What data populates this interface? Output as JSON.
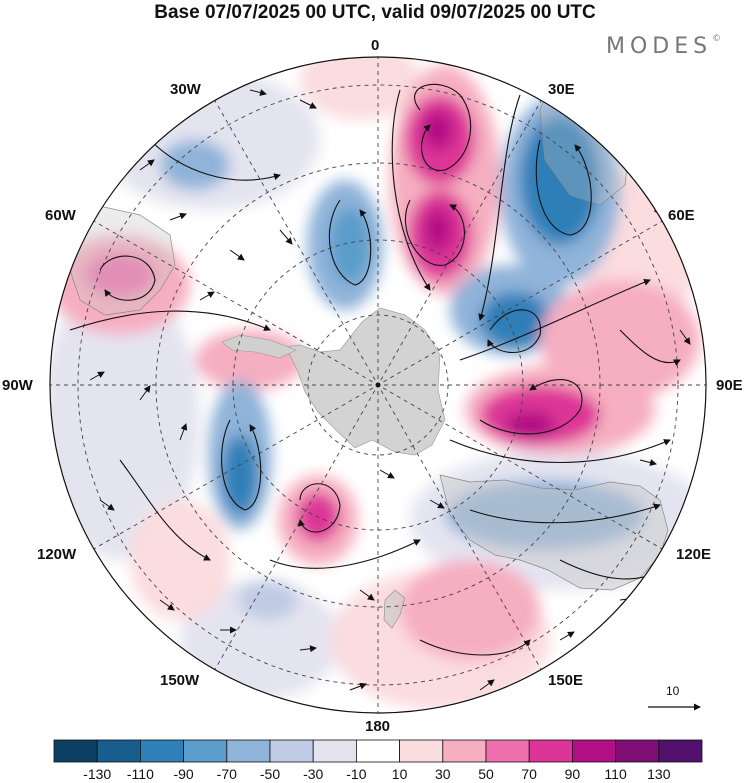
{
  "title": "Base 07/07/2025 00 UTC, valid 09/07/2025 00 UTC",
  "brand": {
    "name": "MODES",
    "mark": "©"
  },
  "map": {
    "projection": "south-polar-stereographic",
    "longitude_labels": {
      "top": "0",
      "top_right": "30E",
      "right_upper": "60E",
      "right": "90E",
      "right_lower": "120E",
      "bottom_right": "150E",
      "bottom": "180",
      "bottom_left": "150W",
      "left_lower": "120W",
      "left": "90W",
      "left_upper": "60W",
      "top_left": "30W"
    },
    "vector_reference": "10"
  },
  "colorbar": {
    "labels": [
      "-130",
      "-110",
      "-90",
      "-70",
      "-50",
      "-30",
      "-10",
      "10",
      "30",
      "50",
      "70",
      "90",
      "110",
      "130"
    ],
    "colors": [
      "#0b3f63",
      "#175e8e",
      "#2f7fb8",
      "#5a9dcb",
      "#8fb3d9",
      "#bfcbe4",
      "#e4e4f0",
      "#ffffff",
      "#fbdcdf",
      "#f6aec1",
      "#ef6fac",
      "#dd3497",
      "#b30f85",
      "#7e0d76",
      "#53116e"
    ]
  },
  "colors": {
    "land": "#c8c8c8",
    "grid": "#444444"
  }
}
